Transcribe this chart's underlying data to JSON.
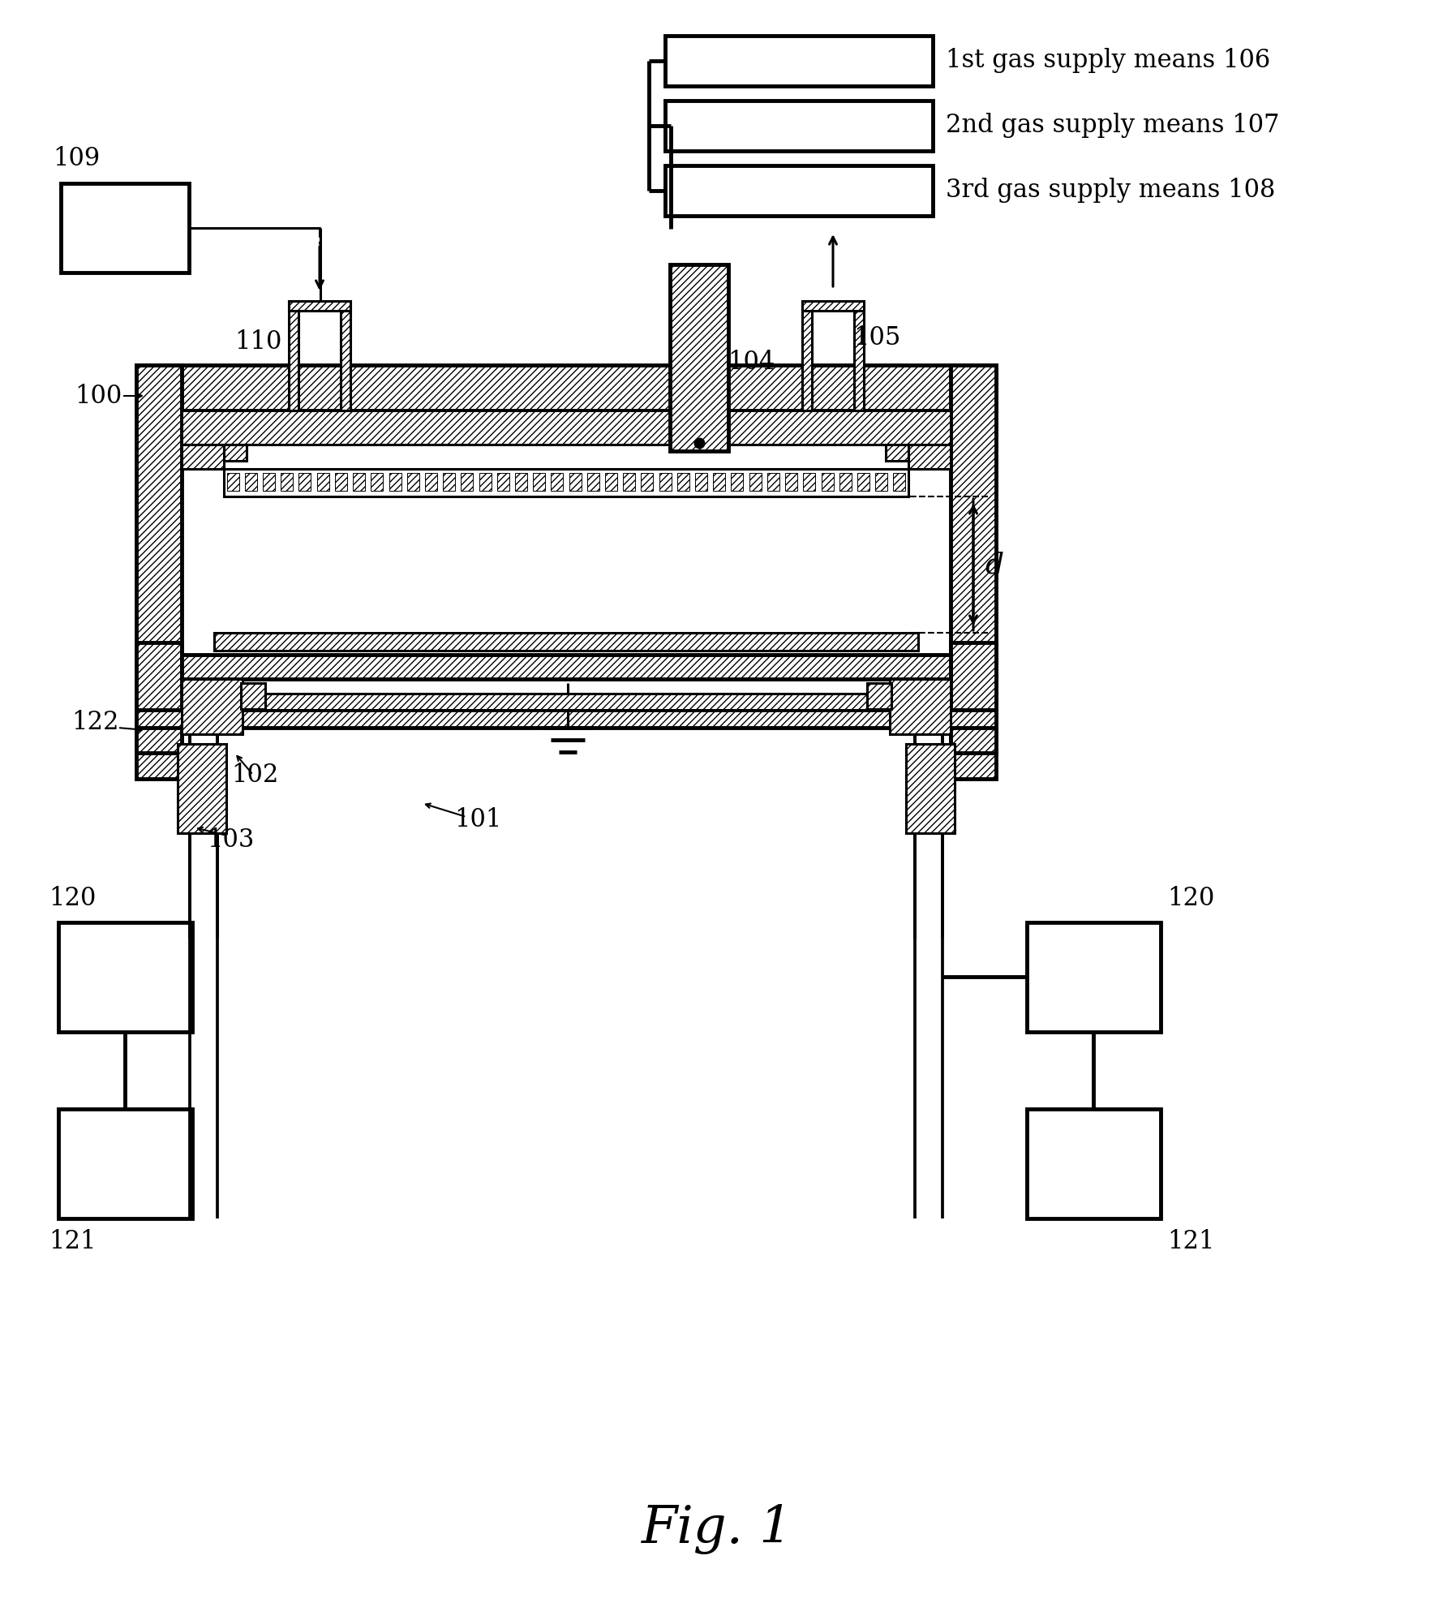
{
  "fig_width": 17.68,
  "fig_height": 19.76,
  "bg_color": "#ffffff",
  "title": "Fig. 1",
  "gas_labels": [
    "1st gas supply means 106",
    "2nd gas supply means 107",
    "3rd gas supply means 108"
  ],
  "lw": 2.2,
  "lwt": 3.5,
  "hatch": "////"
}
